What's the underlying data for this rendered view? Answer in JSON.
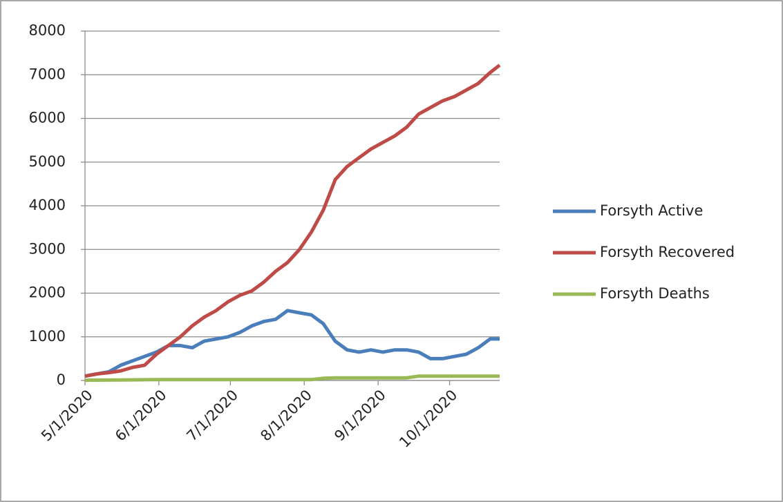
{
  "chart_data": {
    "type": "line",
    "x": [
      "5/1/2020",
      "5/6/2020",
      "5/11/2020",
      "5/16/2020",
      "5/21/2020",
      "5/26/2020",
      "5/31/2020",
      "6/5/2020",
      "6/10/2020",
      "6/15/2020",
      "6/20/2020",
      "6/25/2020",
      "6/30/2020",
      "7/5/2020",
      "7/10/2020",
      "7/15/2020",
      "7/20/2020",
      "7/25/2020",
      "7/30/2020",
      "8/4/2020",
      "8/9/2020",
      "8/14/2020",
      "8/19/2020",
      "8/24/2020",
      "8/29/2020",
      "9/3/2020",
      "9/8/2020",
      "9/13/2020",
      "9/18/2020",
      "9/23/2020",
      "9/28/2020",
      "10/3/2020",
      "10/8/2020",
      "10/13/2020",
      "10/18/2020",
      "10/22/2020"
    ],
    "series": [
      {
        "name": "Forsyth Active",
        "color": "#4a7ebb",
        "values": [
          100,
          150,
          200,
          350,
          450,
          550,
          650,
          800,
          800,
          750,
          900,
          950,
          1000,
          1100,
          1250,
          1350,
          1400,
          1600,
          1550,
          1500,
          1300,
          900,
          700,
          650,
          700,
          650,
          700,
          700,
          650,
          500,
          500,
          550,
          600,
          750,
          950,
          950
        ]
      },
      {
        "name": "Forsyth Recovered",
        "color": "#be4b48",
        "values": [
          100,
          150,
          180,
          220,
          300,
          350,
          600,
          800,
          1000,
          1250,
          1450,
          1600,
          1800,
          1950,
          2050,
          2250,
          2500,
          2700,
          3000,
          3400,
          3900,
          4600,
          4900,
          5100,
          5300,
          5450,
          5600,
          5800,
          6100,
          6250,
          6400,
          6500,
          6650,
          6800,
          7050,
          7220
        ]
      },
      {
        "name": "Forsyth Deaths",
        "color": "#98b954",
        "values": [
          5,
          8,
          10,
          12,
          15,
          18,
          20,
          20,
          20,
          20,
          20,
          20,
          20,
          20,
          20,
          20,
          20,
          20,
          20,
          20,
          50,
          60,
          60,
          60,
          60,
          60,
          60,
          60,
          100,
          100,
          100,
          100,
          100,
          100,
          100,
          100
        ]
      }
    ],
    "xlim": [
      "5/1/2020",
      "10/22/2020"
    ],
    "xticks": [
      "5/1/2020",
      "6/1/2020",
      "7/1/2020",
      "8/1/2020",
      "9/1/2020",
      "10/1/2020"
    ],
    "ylim": [
      0,
      8000
    ],
    "yticks": [
      0,
      1000,
      2000,
      3000,
      4000,
      5000,
      6000,
      7000,
      8000
    ],
    "grid": true,
    "legend": "right"
  }
}
